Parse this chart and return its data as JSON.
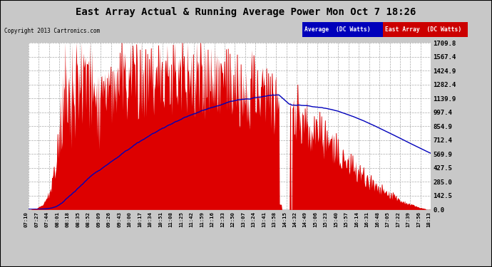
{
  "title": "East Array Actual & Running Average Power Mon Oct 7 18:26",
  "copyright": "Copyright 2013 Cartronics.com",
  "ylabel_right_ticks": [
    0.0,
    142.5,
    285.0,
    427.5,
    569.9,
    712.4,
    854.9,
    997.4,
    1139.9,
    1282.4,
    1424.9,
    1567.4,
    1709.8
  ],
  "ymax": 1709.8,
  "legend_labels": [
    "Average  (DC Watts)",
    "East Array  (DC Watts)"
  ],
  "legend_colors": [
    "#0000bb",
    "#cc0000"
  ],
  "background_color": "#c8c8c8",
  "plot_bg_color": "#ffffff",
  "grid_color": "#aaaaaa",
  "fill_color": "#dd0000",
  "line_color": "#0000bb",
  "title_color": "#000000",
  "x_labels": [
    "07:10",
    "07:27",
    "07:44",
    "08:01",
    "08:18",
    "08:35",
    "08:52",
    "09:09",
    "09:26",
    "09:43",
    "10:00",
    "10:17",
    "10:34",
    "10:51",
    "11:08",
    "11:25",
    "11:42",
    "11:59",
    "12:16",
    "12:33",
    "12:50",
    "13:07",
    "13:24",
    "13:41",
    "13:58",
    "14:15",
    "14:32",
    "14:49",
    "15:06",
    "15:23",
    "15:40",
    "15:57",
    "16:14",
    "16:31",
    "16:48",
    "17:05",
    "17:22",
    "17:39",
    "17:56",
    "18:13"
  ]
}
